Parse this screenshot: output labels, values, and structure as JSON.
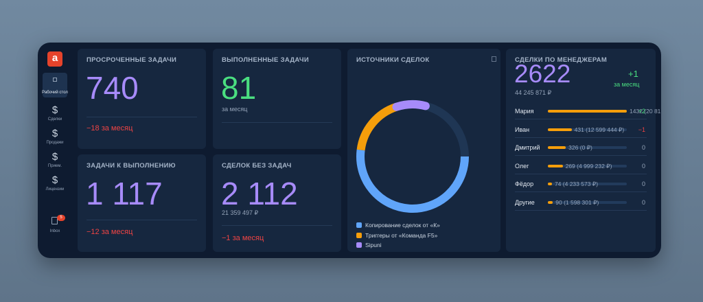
{
  "sidebar": {
    "logo": "a",
    "items": [
      {
        "label": "Рабочий стол"
      },
      {
        "icon": "$",
        "label": "Сделки"
      },
      {
        "icon": "$",
        "label": "Продажи"
      },
      {
        "icon": "$",
        "label": "Прием."
      },
      {
        "icon": "$",
        "label": "Лицензии"
      }
    ],
    "inbox": {
      "label": "Inbox",
      "badge": 5
    }
  },
  "overdue": {
    "title": "ПРОСРОЧЕННЫЕ ЗАДАЧИ",
    "value": "740",
    "delta": "−18 за месяц"
  },
  "done": {
    "title": "ВЫПОЛНЕННЫЕ ЗАДАЧИ",
    "value": "81",
    "sub": "за месяц"
  },
  "todo": {
    "title": "ЗАДАЧИ К ВЫПОЛНЕНИЮ",
    "value": "1 117",
    "delta": "−12 за месяц"
  },
  "no_tasks": {
    "title": "СДЕЛОК БЕЗ ЗАДАЧ",
    "value": "2 112",
    "sum": "21 359 497 ₽",
    "delta": "−1 за месяц"
  },
  "sources": {
    "title": "ИСТОЧНИКИ СДЕЛОК",
    "series": [
      {
        "name": "Копирование сделок от «К»",
        "color": "#60a5fa",
        "value": 52
      },
      {
        "name": "Триггеры от «Команда F5»",
        "color": "#f59e0b",
        "value": 18
      },
      {
        "name": "Sipuni",
        "color": "#a78bfa",
        "value": 9
      }
    ]
  },
  "managers": {
    "title": "СДЕЛКИ ПО МЕНЕДЖЕРАМ",
    "total": "2622",
    "change": "+1",
    "change_note": "за месяц",
    "sum": "44 245 871 ₽",
    "bar_color": "#f59e0b",
    "rows": [
      {
        "name": "Мария",
        "count": 1432,
        "amount": "(20 81",
        "delta": "+2"
      },
      {
        "name": "Иван",
        "count": 431,
        "amount": "(12 599 444 ₽)",
        "delta": "−1"
      },
      {
        "name": "Дмитрий",
        "count": 326,
        "amount": "(0 ₽)",
        "delta": "0"
      },
      {
        "name": "Олег",
        "count": 269,
        "amount": "(4 999 232 ₽)",
        "delta": "0"
      },
      {
        "name": "Фёдор",
        "count": 74,
        "amount": "(4 233 573 ₽)",
        "delta": "0"
      },
      {
        "name": "Другие",
        "count": 90,
        "amount": "(1 598 301 ₽)",
        "delta": "0"
      }
    ]
  }
}
